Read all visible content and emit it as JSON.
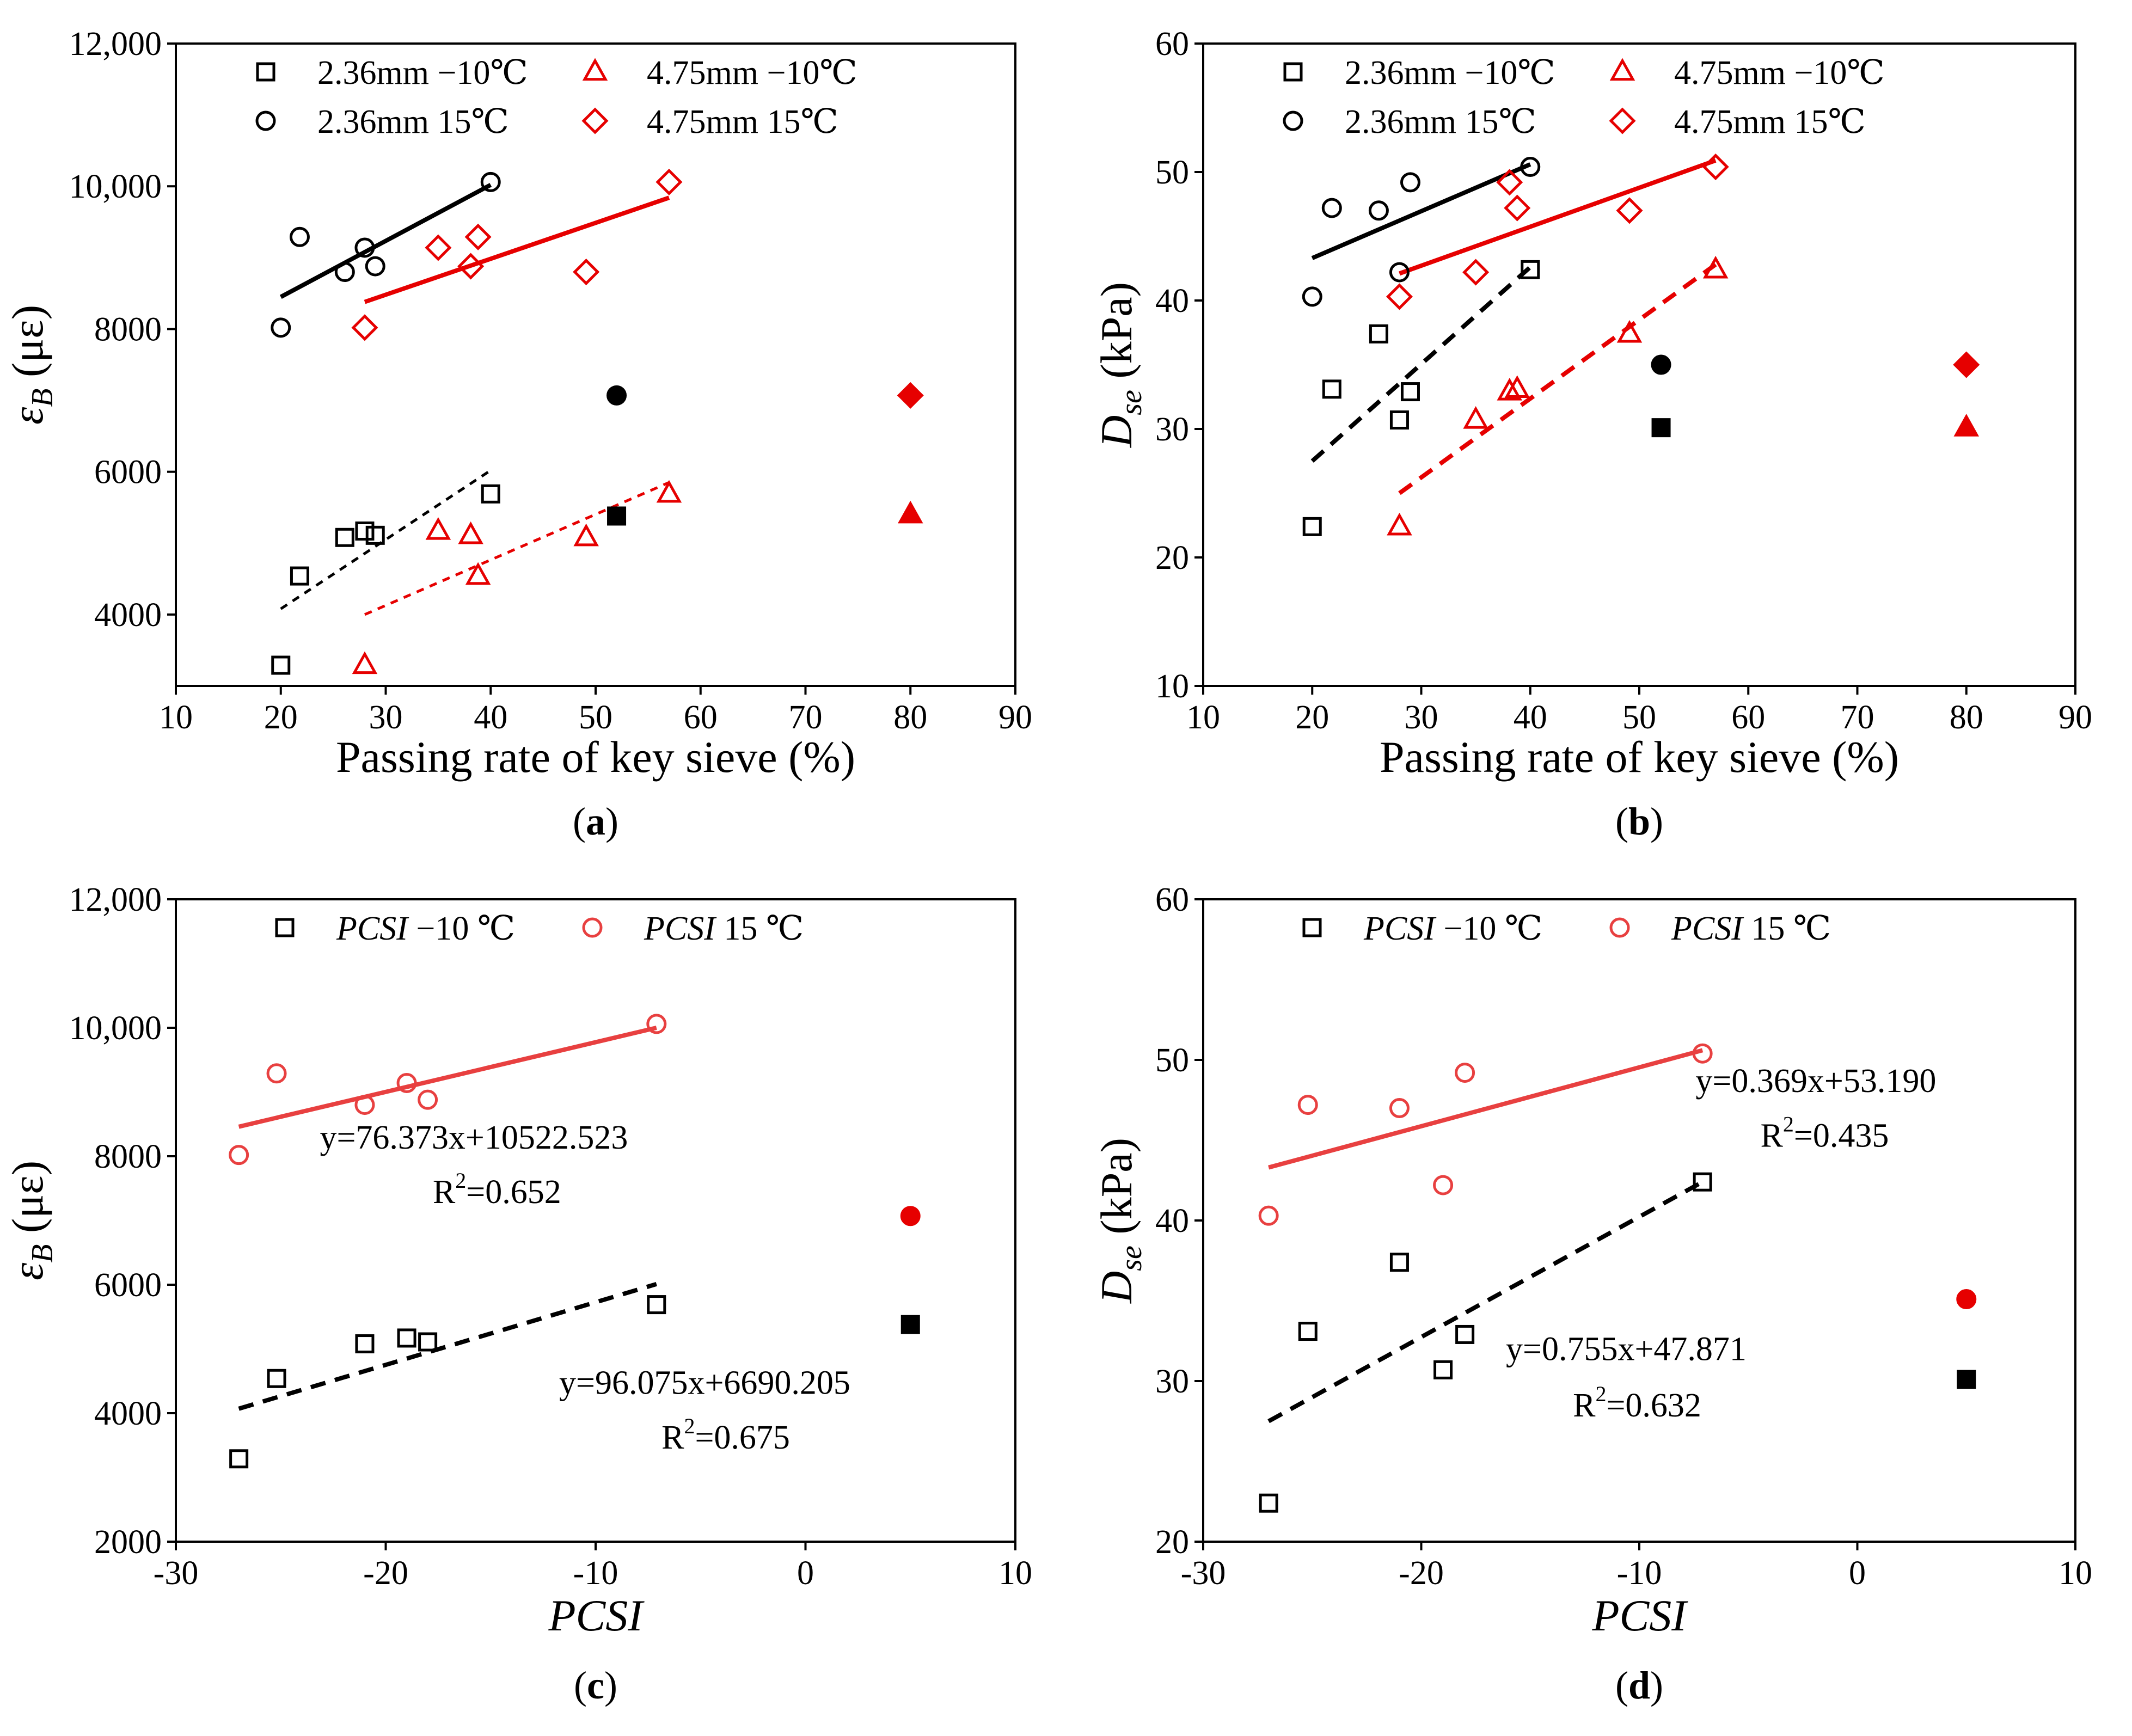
{
  "colors": {
    "black": "#000000",
    "red": "#e60000",
    "red_light": "#e84040"
  },
  "chart_data": [
    {
      "type": "scatter",
      "panel_label": "a",
      "xlabel": "Passing rate of key sieve (%)",
      "ylabel_main": "ε",
      "ylabel_sub": "B",
      "ylabel_unit": " (με)",
      "xlim": [
        10,
        90
      ],
      "ylim": [
        3000,
        12000
      ],
      "x_ticks": [
        10,
        20,
        30,
        40,
        50,
        60,
        70,
        80,
        90
      ],
      "x_tick_labels": [
        "10",
        "20",
        "30",
        "40",
        "50",
        "60",
        "70",
        "80",
        "90"
      ],
      "y_ticks": [
        4000,
        6000,
        8000,
        10000,
        12000
      ],
      "y_tick_labels": [
        "4000",
        "6000",
        "8000",
        "10,000",
        "12,000"
      ],
      "legend_columns": 2,
      "series": [
        {
          "name": "2.36mm −10℃",
          "marker": "square",
          "color": "#000000",
          "x": [
            20,
            21.8,
            26.1,
            28,
            29,
            40
          ],
          "y": [
            3290,
            4540,
            5080,
            5170,
            5110,
            5690
          ],
          "trend": {
            "x": [
              20,
              40
            ],
            "y": [
              4080,
              6020
            ],
            "dash": "short"
          }
        },
        {
          "name": "4.75mm −10℃",
          "marker": "triangle",
          "color": "#e60000",
          "x": [
            28,
            35,
            38.1,
            38.8,
            49.1,
            57
          ],
          "y": [
            3290,
            5170,
            5110,
            4540,
            5080,
            5690
          ],
          "trend": {
            "x": [
              28,
              57
            ],
            "y": [
              4000,
              5850
            ],
            "dash": "short"
          }
        },
        {
          "name": "2.36mm 15℃",
          "marker": "circle",
          "color": "#000000",
          "x": [
            20,
            21.8,
            26.1,
            28,
            29,
            40
          ],
          "y": [
            8020,
            9290,
            8800,
            9140,
            8880,
            10060
          ],
          "trend": {
            "x": [
              20,
              40
            ],
            "y": [
              8450,
              10020
            ],
            "dash": "solid"
          }
        },
        {
          "name": "4.75mm 15℃",
          "marker": "diamond",
          "color": "#e60000",
          "x": [
            28,
            35,
            38.1,
            38.8,
            49.1,
            57
          ],
          "y": [
            8020,
            9140,
            8880,
            9290,
            8800,
            10060
          ],
          "trend": {
            "x": [
              28,
              57
            ],
            "y": [
              8380,
              9840
            ],
            "dash": "solid"
          }
        }
      ],
      "reference_points": [
        {
          "x": 52,
          "y": 7070,
          "marker": "circle",
          "color": "#000000"
        },
        {
          "x": 52,
          "y": 5380,
          "marker": "square",
          "color": "#000000"
        },
        {
          "x": 80,
          "y": 7070,
          "marker": "diamond",
          "color": "#e60000"
        },
        {
          "x": 80,
          "y": 5400,
          "marker": "triangle",
          "color": "#e60000"
        }
      ],
      "annotations": []
    },
    {
      "type": "scatter",
      "panel_label": "b",
      "xlabel": "Passing rate of key sieve (%)",
      "ylabel_main": "D",
      "ylabel_sub": "se",
      "ylabel_unit": " (kPa)",
      "xlim": [
        10,
        90
      ],
      "ylim": [
        10,
        60
      ],
      "x_ticks": [
        10,
        20,
        30,
        40,
        50,
        60,
        70,
        80,
        90
      ],
      "x_tick_labels": [
        "10",
        "20",
        "30",
        "40",
        "50",
        "60",
        "70",
        "80",
        "90"
      ],
      "y_ticks": [
        10,
        20,
        30,
        40,
        50,
        60
      ],
      "y_tick_labels": [
        "10",
        "20",
        "30",
        "40",
        "50",
        "60"
      ],
      "legend_columns": 2,
      "series": [
        {
          "name": "2.36mm −10℃",
          "marker": "square",
          "color": "#000000",
          "x": [
            20,
            21.8,
            26.1,
            28,
            29,
            40
          ],
          "y": [
            22.4,
            33.1,
            37.4,
            30.7,
            32.9,
            42.4
          ],
          "trend": {
            "x": [
              20,
              40
            ],
            "y": [
              27.5,
              42.6
            ],
            "dash": "long"
          }
        },
        {
          "name": "4.75mm −10℃",
          "marker": "triangle",
          "color": "#e60000",
          "x": [
            28,
            35,
            38.1,
            38.8,
            49.1,
            57
          ],
          "y": [
            22.4,
            30.7,
            32.9,
            33.1,
            37.4,
            42.4
          ],
          "trend": {
            "x": [
              28,
              57
            ],
            "y": [
              25,
              42.8
            ],
            "dash": "long"
          }
        },
        {
          "name": "2.36mm 15℃",
          "marker": "circle",
          "color": "#000000",
          "x": [
            20,
            21.8,
            26.1,
            28,
            29,
            40
          ],
          "y": [
            40.3,
            47.2,
            47,
            42.2,
            49.2,
            50.4
          ],
          "trend": {
            "x": [
              20,
              40
            ],
            "y": [
              43.3,
              50.6
            ],
            "dash": "solid"
          }
        },
        {
          "name": "4.75mm 15℃",
          "marker": "diamond",
          "color": "#e60000",
          "x": [
            28,
            35,
            38.1,
            38.8,
            49.1,
            57
          ],
          "y": [
            40.3,
            42.2,
            49.2,
            47.2,
            47,
            50.4
          ],
          "trend": {
            "x": [
              28,
              57
            ],
            "y": [
              42.1,
              50.9
            ],
            "dash": "solid"
          }
        }
      ],
      "reference_points": [
        {
          "x": 52,
          "y": 35,
          "marker": "circle",
          "color": "#000000"
        },
        {
          "x": 52,
          "y": 30.1,
          "marker": "square",
          "color": "#000000"
        },
        {
          "x": 80,
          "y": 35,
          "marker": "diamond",
          "color": "#e60000"
        },
        {
          "x": 80,
          "y": 30.1,
          "marker": "triangle",
          "color": "#e60000"
        }
      ],
      "annotations": []
    },
    {
      "type": "scatter",
      "panel_label": "c",
      "xlabel": "PCSI",
      "xlabel_italic": true,
      "ylabel_main": "ε",
      "ylabel_sub": "B",
      "ylabel_unit": " (με)",
      "xlim": [
        -30,
        10
      ],
      "ylim": [
        2000,
        12000
      ],
      "x_ticks": [
        -30,
        -20,
        -10,
        0,
        10
      ],
      "x_tick_labels": [
        "-30",
        "-20",
        "-10",
        "0",
        "10"
      ],
      "y_ticks": [
        2000,
        4000,
        6000,
        8000,
        10000,
        12000
      ],
      "y_tick_labels": [
        "2000",
        "4000",
        "6000",
        "8000",
        "10,000",
        "12,000"
      ],
      "legend_columns": 2,
      "series": [
        {
          "name_italic": "PCSI",
          "name_rest": " −10 ℃",
          "marker": "square",
          "color": "#000000",
          "x": [
            -27,
            -25.2,
            -21,
            -19,
            -18,
            -7.1
          ],
          "y": [
            3290,
            4540,
            5080,
            5170,
            5110,
            5690
          ],
          "trend": {
            "x": [
              -27,
              -7.1
            ],
            "y": [
              4070,
              6010
            ],
            "dash": "long"
          }
        },
        {
          "name_italic": "PCSI",
          "name_rest": " 15 ℃",
          "marker": "circle",
          "color": "#e84040",
          "x": [
            -27,
            -25.2,
            -21,
            -19,
            -18,
            -7.1
          ],
          "y": [
            8020,
            9290,
            8800,
            9140,
            8880,
            10060
          ],
          "trend": {
            "x": [
              -27,
              -7.1
            ],
            "y": [
              8460,
              10000
            ],
            "dash": "solid"
          }
        }
      ],
      "reference_points": [
        {
          "x": 5,
          "y": 7070,
          "marker": "circle",
          "color": "#e60000"
        },
        {
          "x": 5,
          "y": 5380,
          "marker": "square",
          "color": "#000000"
        }
      ],
      "annotations": [
        {
          "eq": "y=76.373x+10522.523",
          "r2_value": "=0.652",
          "x": -15.8,
          "y": 8120,
          "r2_x": -14.7,
          "r2_y": 7270
        },
        {
          "eq": "y=96.075x+6690.205",
          "r2_value": "=0.675",
          "x": -4.8,
          "y": 4300,
          "r2_x": -3.8,
          "r2_y": 3450
        }
      ]
    },
    {
      "type": "scatter",
      "panel_label": "d",
      "xlabel": "PCSI",
      "xlabel_italic": true,
      "ylabel_main": "D",
      "ylabel_sub": "se",
      "ylabel_unit": " (kPa)",
      "xlim": [
        -30,
        10
      ],
      "ylim": [
        20,
        60
      ],
      "x_ticks": [
        -30,
        -20,
        -10,
        0,
        10
      ],
      "x_tick_labels": [
        "-30",
        "-20",
        "-10",
        "0",
        "10"
      ],
      "y_ticks": [
        20,
        30,
        40,
        50,
        60
      ],
      "y_tick_labels": [
        "20",
        "30",
        "40",
        "50",
        "60"
      ],
      "legend_columns": 2,
      "series": [
        {
          "name_italic": "PCSI",
          "name_rest": " −10 ℃",
          "marker": "square",
          "color": "#000000",
          "x": [
            -27,
            -25.2,
            -21,
            -19,
            -18,
            -7.1
          ],
          "y": [
            22.4,
            33.1,
            37.4,
            30.7,
            32.9,
            42.4
          ],
          "trend": {
            "x": [
              -27,
              -7.1
            ],
            "y": [
              27.5,
              42.4
            ],
            "dash": "long"
          }
        },
        {
          "name_italic": "PCSI",
          "name_rest": " 15 ℃",
          "marker": "circle",
          "color": "#e84040",
          "x": [
            -27,
            -25.2,
            -21,
            -19,
            -18,
            -7.1
          ],
          "y": [
            40.3,
            47.2,
            47,
            42.2,
            49.2,
            50.4
          ],
          "trend": {
            "x": [
              -27,
              -7.1
            ],
            "y": [
              43.3,
              50.6
            ],
            "dash": "solid"
          }
        }
      ],
      "reference_points": [
        {
          "x": 5,
          "y": 35.1,
          "marker": "circle",
          "color": "#e60000"
        },
        {
          "x": 5,
          "y": 30.1,
          "marker": "square",
          "color": "#000000"
        }
      ],
      "annotations": [
        {
          "eq": "y=0.369x+53.190",
          "r2_value": "=0.435",
          "x": -1.9,
          "y": 48,
          "r2_x": -1.5,
          "r2_y": 44.6
        },
        {
          "eq": "y=0.755x+47.871",
          "r2_value": "=0.632",
          "x": -10.6,
          "y": 31.3,
          "r2_x": -10.1,
          "r2_y": 27.8
        }
      ]
    }
  ]
}
